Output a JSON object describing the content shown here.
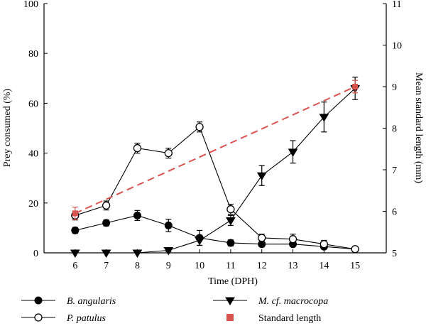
{
  "chart_data": {
    "type": "line",
    "xlabel": "Time (DPH)",
    "ylabel": "Prey consumed (%)",
    "y2label": "Mean standard length (mm)",
    "x": [
      6,
      7,
      8,
      9,
      10,
      11,
      12,
      13,
      14,
      15
    ],
    "xlim": [
      5,
      16
    ],
    "ylim": [
      0,
      100
    ],
    "y2lim": [
      5,
      11
    ],
    "xticks": [
      "6",
      "7",
      "8",
      "9",
      "10",
      "11",
      "12",
      "13",
      "14",
      "15"
    ],
    "yticks": [
      "0",
      "20",
      "40",
      "60",
      "80",
      "100"
    ],
    "y2ticks": [
      "5",
      "6",
      "7",
      "8",
      "9",
      "10",
      "11"
    ],
    "grid": false,
    "legend_position": "bottom",
    "series": [
      {
        "name": "B. angularis",
        "marker": "filled-circle",
        "axis": "left",
        "values": [
          9,
          12,
          15,
          11,
          6,
          4,
          3.5,
          3.5,
          2.5,
          1.5
        ],
        "errors": [
          1.2,
          1.2,
          2,
          2.5,
          3,
          1.2,
          1,
          1,
          1,
          0.8
        ]
      },
      {
        "name": "P. patulus",
        "marker": "open-circle",
        "axis": "left",
        "values": [
          15,
          19,
          42,
          40,
          50.5,
          17.5,
          6,
          5.5,
          3.5,
          1.5
        ],
        "errors": [
          1.8,
          1.8,
          2,
          2,
          2,
          2,
          1.5,
          2,
          1.5,
          0.8
        ]
      },
      {
        "name": "M. cf. macrocopa",
        "marker": "filled-triangle-down",
        "axis": "left",
        "values": [
          0,
          0,
          0,
          1,
          5,
          13,
          31,
          40.5,
          54.5,
          66
        ],
        "errors": [
          0,
          0,
          0,
          0.5,
          2,
          2,
          4,
          4.5,
          6,
          4.5
        ]
      },
      {
        "name": "Standard length",
        "marker": "filled-square",
        "axis": "right",
        "color": "#d9534f",
        "x": [
          6,
          15
        ],
        "values": [
          5.95,
          9.0
        ],
        "errors": [
          0.15,
          0.15
        ]
      }
    ]
  }
}
